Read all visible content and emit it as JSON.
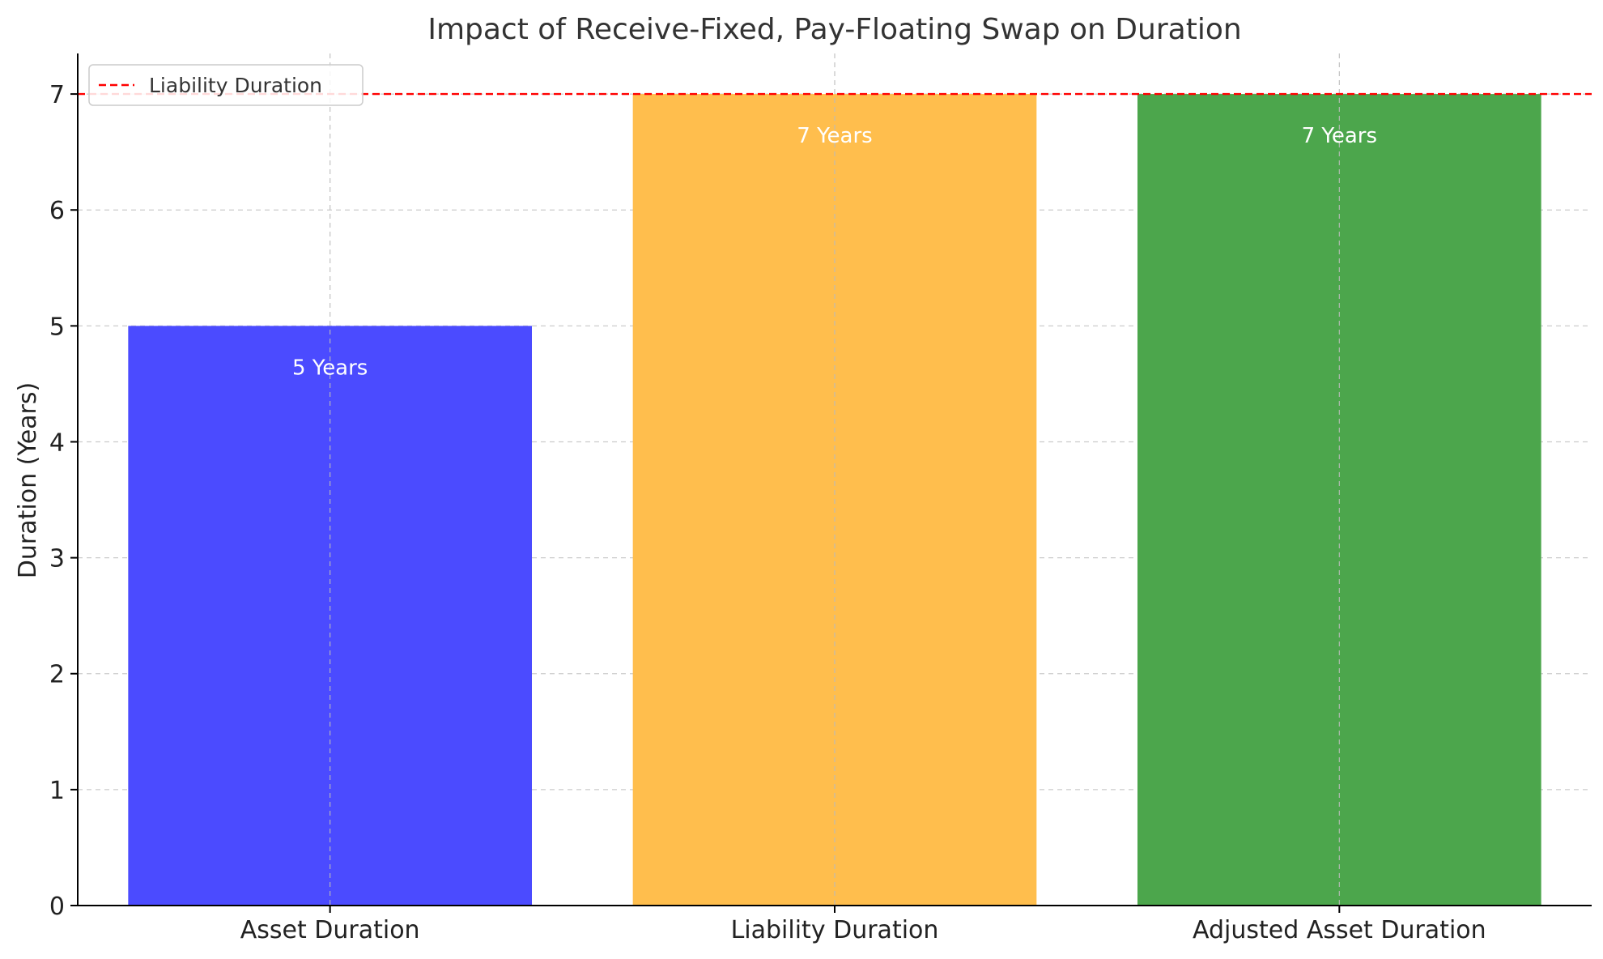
{
  "chart_data": {
    "type": "bar",
    "title": "Impact of Receive-Fixed, Pay-Floating Swap on Duration",
    "xlabel": "",
    "ylabel": "Duration (Years)",
    "categories": [
      "Asset Duration",
      "Liability Duration",
      "Adjusted Asset Duration"
    ],
    "values": [
      5,
      7,
      7
    ],
    "data_labels": [
      "5 Years",
      "7 Years",
      "7 Years"
    ],
    "colors": [
      "#4b4bff",
      "#ffbe4d",
      "#4ca64c"
    ],
    "ylim": [
      0,
      7.35
    ],
    "yticks": [
      0,
      1,
      2,
      3,
      4,
      5,
      6,
      7
    ],
    "grid": true,
    "reference_line": {
      "value": 7,
      "label": "Liability Duration",
      "color": "#ff0000",
      "style": "dashed"
    },
    "legend": {
      "placement": "top-left",
      "entries": [
        "Liability Duration"
      ]
    }
  }
}
